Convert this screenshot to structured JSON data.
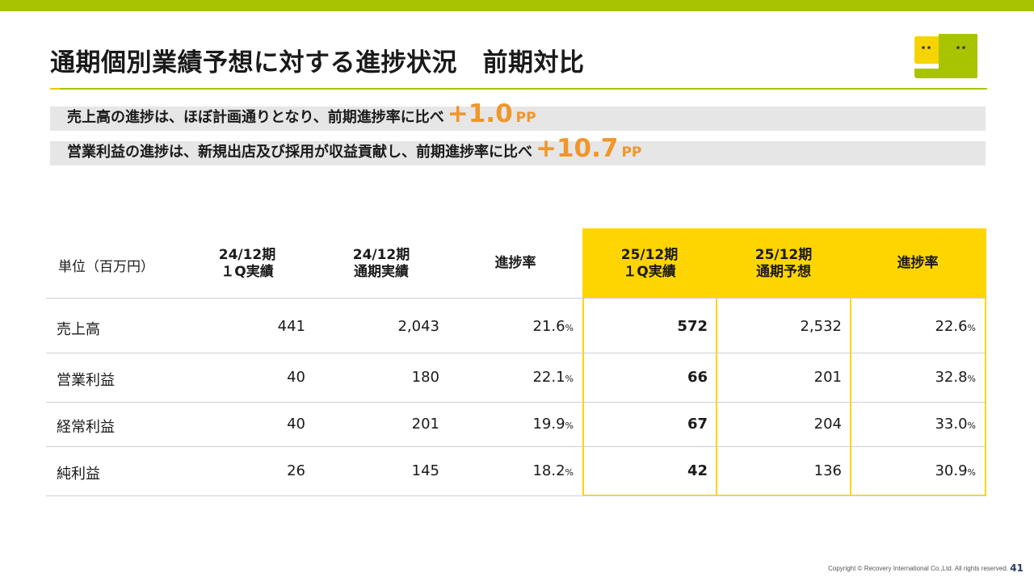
{
  "header": {
    "title": "通期個別業績予想に対する進捗状況　前期対比"
  },
  "colors": {
    "accent_green": "#a8c400",
    "highlight_yellow": "#ffd500",
    "emphasis_orange": "#f0962a"
  },
  "summary": [
    {
      "text": "売上高の進捗は、ほぼ計画通りとなり、前期進捗率に比べ",
      "value": "+1.0",
      "unit": "PP"
    },
    {
      "text": "営業利益の進捗は、新規出店及び採用が収益貢献し、前期進捗率に比べ",
      "value": "+10.7",
      "unit": "PP"
    }
  ],
  "table": {
    "unit_label": "単位（百万円）",
    "columns": [
      {
        "line1": "24/12期",
        "line2": "１Q実績"
      },
      {
        "line1": "24/12期",
        "line2": "通期実績"
      },
      {
        "line1": "進捗率",
        "line2": ""
      },
      {
        "line1": "25/12期",
        "line2": "１Q実績"
      },
      {
        "line1": "25/12期",
        "line2": "通期予想"
      },
      {
        "line1": "進捗率",
        "line2": ""
      }
    ],
    "rows": [
      {
        "label": "売上高",
        "cells": [
          "441",
          "2,043",
          "21.6",
          "572",
          "2,532",
          "22.6"
        ]
      },
      {
        "label": "営業利益",
        "cells": [
          "40",
          "180",
          "22.1",
          "66",
          "201",
          "32.8"
        ]
      },
      {
        "label": "経常利益",
        "cells": [
          "40",
          "201",
          "19.9",
          "67",
          "204",
          "33.0"
        ]
      },
      {
        "label": "純利益",
        "cells": [
          "26",
          "145",
          "18.2",
          "42",
          "136",
          "30.9"
        ]
      }
    ],
    "percent_sign": "%"
  },
  "footer": {
    "copyright": "Copyright © Recovery International Co.,Ltd. All rights reserved.",
    "page_number": "41"
  },
  "icons": {
    "logo": "company-logo-icon"
  }
}
